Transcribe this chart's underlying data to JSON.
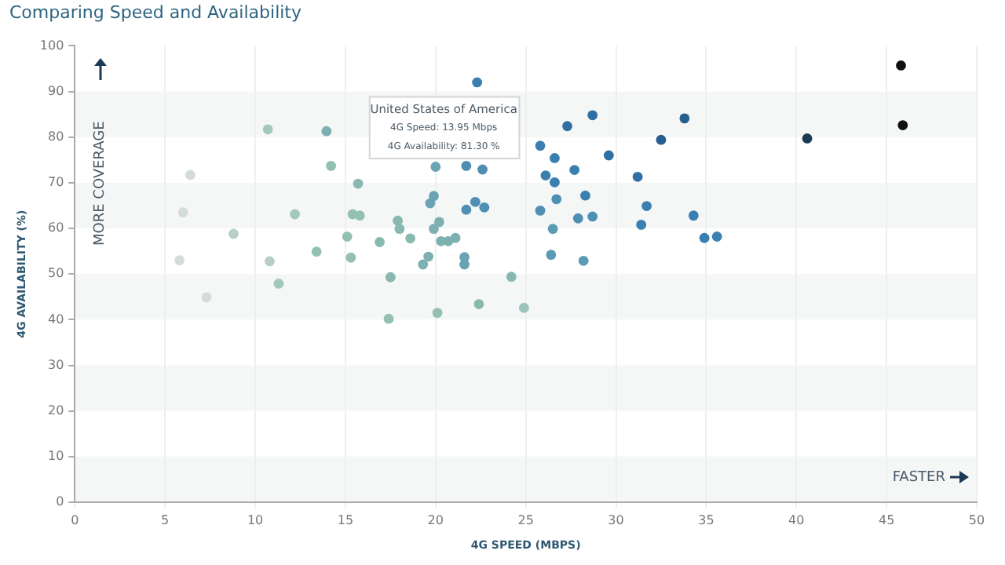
{
  "chart_data": {
    "type": "scatter",
    "title": "Comparing Speed and Availability",
    "xlabel": "4G SPEED (MBPS)",
    "ylabel": "4G AVAILABILITY (%)",
    "xlim": [
      0,
      50
    ],
    "xticks": [
      0,
      5,
      10,
      15,
      20,
      25,
      30,
      35,
      40,
      45,
      50
    ],
    "ylim": [
      0,
      100
    ],
    "yticks": [
      0,
      10,
      20,
      30,
      40,
      50,
      60,
      70,
      80,
      90,
      100
    ],
    "grid": true,
    "legend": false,
    "marker": "circle",
    "annotations": [
      "MORE COVERAGE",
      "FASTER",
      "United States of America\n4G Speed: 13.95 Mbps\n4G Availability: 81.30 %"
    ],
    "series": [
      {
        "x": [
          5.8,
          6.0,
          6.4,
          7.3,
          8.8,
          10.7,
          10.8,
          11.3,
          12.2,
          13.4,
          13.95,
          14.2,
          15.1,
          15.3,
          15.4,
          15.7,
          15.8,
          16.9,
          17.4,
          17.5,
          17.9,
          18.0,
          18.6,
          19.3,
          19.6,
          19.7,
          19.9,
          19.9,
          20.0,
          20.1,
          20.2,
          20.3,
          20.7,
          21.1,
          21.6,
          21.6,
          21.7,
          21.7,
          22.2,
          22.3,
          22.4,
          22.6,
          22.7,
          24.2,
          24.9,
          25.8,
          25.8,
          26.1,
          26.4,
          26.5,
          26.6,
          26.6,
          26.7,
          27.3,
          27.7,
          27.9,
          28.2,
          28.3,
          28.7,
          28.7,
          29.6,
          31.2,
          31.4,
          31.7,
          32.5,
          33.8,
          34.3,
          34.9,
          35.6,
          40.6,
          45.8,
          45.9
        ],
        "values": [
          53.0,
          63.5,
          71.7,
          44.9,
          58.8,
          81.7,
          52.8,
          47.9,
          63.1,
          54.9,
          81.3,
          73.7,
          58.2,
          53.6,
          63.1,
          69.8,
          62.8,
          57.0,
          40.2,
          49.3,
          61.7,
          59.9,
          57.8,
          52.1,
          53.8,
          65.5,
          67.1,
          59.9,
          73.5,
          41.5,
          61.4,
          57.2,
          57.2,
          57.9,
          53.7,
          52.1,
          64.1,
          73.7,
          65.8,
          92.0,
          43.4,
          72.9,
          64.6,
          49.4,
          42.6,
          78.1,
          63.9,
          71.6,
          54.2,
          59.9,
          75.4,
          70.1,
          66.4,
          82.4,
          72.8,
          62.2,
          52.9,
          67.2,
          84.8,
          62.6,
          76.0,
          71.3,
          60.8,
          64.9,
          79.4,
          84.1,
          62.8,
          57.9,
          58.2,
          79.7,
          95.7,
          82.6
        ],
        "colors": [
          "#d3dcda",
          "#d3dcda",
          "#d3dcda",
          "#d3dcda",
          "#b5cfc8",
          "#a3c9bc",
          "#b5cfc8",
          "#a3c9bc",
          "#a3c9bc",
          "#94c0b4",
          "#7fadb4",
          "#94c0b4",
          "#94c0b4",
          "#94c0b4",
          "#94c0b4",
          "#88b8b0",
          "#94c0b4",
          "#88b8b0",
          "#94c0b4",
          "#88b8b0",
          "#88b8b0",
          "#88b8b0",
          "#88b8b0",
          "#7db0b0",
          "#7db0b0",
          "#6aa3b3",
          "#6aa3b3",
          "#7db0b0",
          "#6aa3b3",
          "#94c0b4",
          "#7db0b0",
          "#7db0b0",
          "#7db0b0",
          "#7db0b0",
          "#6aa3b3",
          "#6aa3b3",
          "#4f8fb3",
          "#4f8fb3",
          "#4f8fb3",
          "#3a7fb0",
          "#88b8b0",
          "#4f8fb3",
          "#4f8fb3",
          "#88b8b0",
          "#9cc4bb",
          "#3a7fb0",
          "#4f8fb3",
          "#3a7fb0",
          "#5a9ab5",
          "#5a9ab5",
          "#3a7fb0",
          "#3a7fb0",
          "#4f8fb3",
          "#2f6fa3",
          "#3a7fb0",
          "#4f8fb3",
          "#5a9ab5",
          "#3a7fb0",
          "#2f6fa3",
          "#4f8fb3",
          "#2f6fa3",
          "#2f6fa3",
          "#3a7fb0",
          "#3a7fb0",
          "#255e8f",
          "#255e8f",
          "#3a7fb0",
          "#3a7fb0",
          "#3a7fb0",
          "#1d3a55",
          "#111111",
          "#111111"
        ]
      }
    ]
  }
}
